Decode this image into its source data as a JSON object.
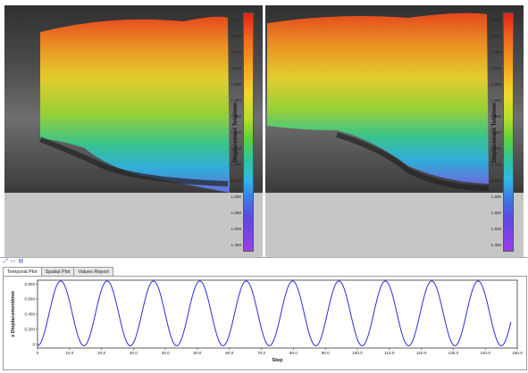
{
  "colorbar": {
    "title": "Displacement Total/mm",
    "ticks": [
      "2.150",
      "2.100",
      "2.050",
      "2.000",
      "1.950",
      "1.900",
      "1.850",
      "1.800",
      "1.750",
      "1.700",
      "1.650",
      "1.600",
      "1.550",
      "1.500",
      "1.450"
    ],
    "colors": [
      "#e8201a",
      "#f6a21e",
      "#f1d92a",
      "#5ccf3a",
      "#2fb8e6",
      "#5a4ae0",
      "#9a3ee8"
    ]
  },
  "toolstrip": {
    "icons": [
      "expand-icon",
      "window-icon",
      "chart-icon"
    ]
  },
  "tabs": [
    {
      "label": "Temporal Plot",
      "active": true
    },
    {
      "label": "Spatial Plot",
      "active": false
    },
    {
      "label": "Values Report",
      "active": false
    }
  ],
  "chart_data": {
    "type": "line",
    "xlabel": "Step",
    "ylabel": "x Displacement/mm",
    "xlim": [
      0,
      150
    ],
    "ylim": [
      -0.05,
      0.85
    ],
    "x_ticks": [
      "0",
      "10.0",
      "20.0",
      "30.0",
      "40.0",
      "50.0",
      "60.0",
      "70.0",
      "80.0",
      "90.0",
      "100.0",
      "110.0",
      "120.0",
      "130.0",
      "140.0",
      "150.0"
    ],
    "y_ticks": [
      "0",
      "0.200",
      "0.400",
      "0.600",
      "0.800"
    ],
    "series_color": "#2d2dd6",
    "period": 14.5,
    "phase_zero_at": 0,
    "amplitude_min": -0.02,
    "amplitude_max": 0.84,
    "x_end": 148
  }
}
